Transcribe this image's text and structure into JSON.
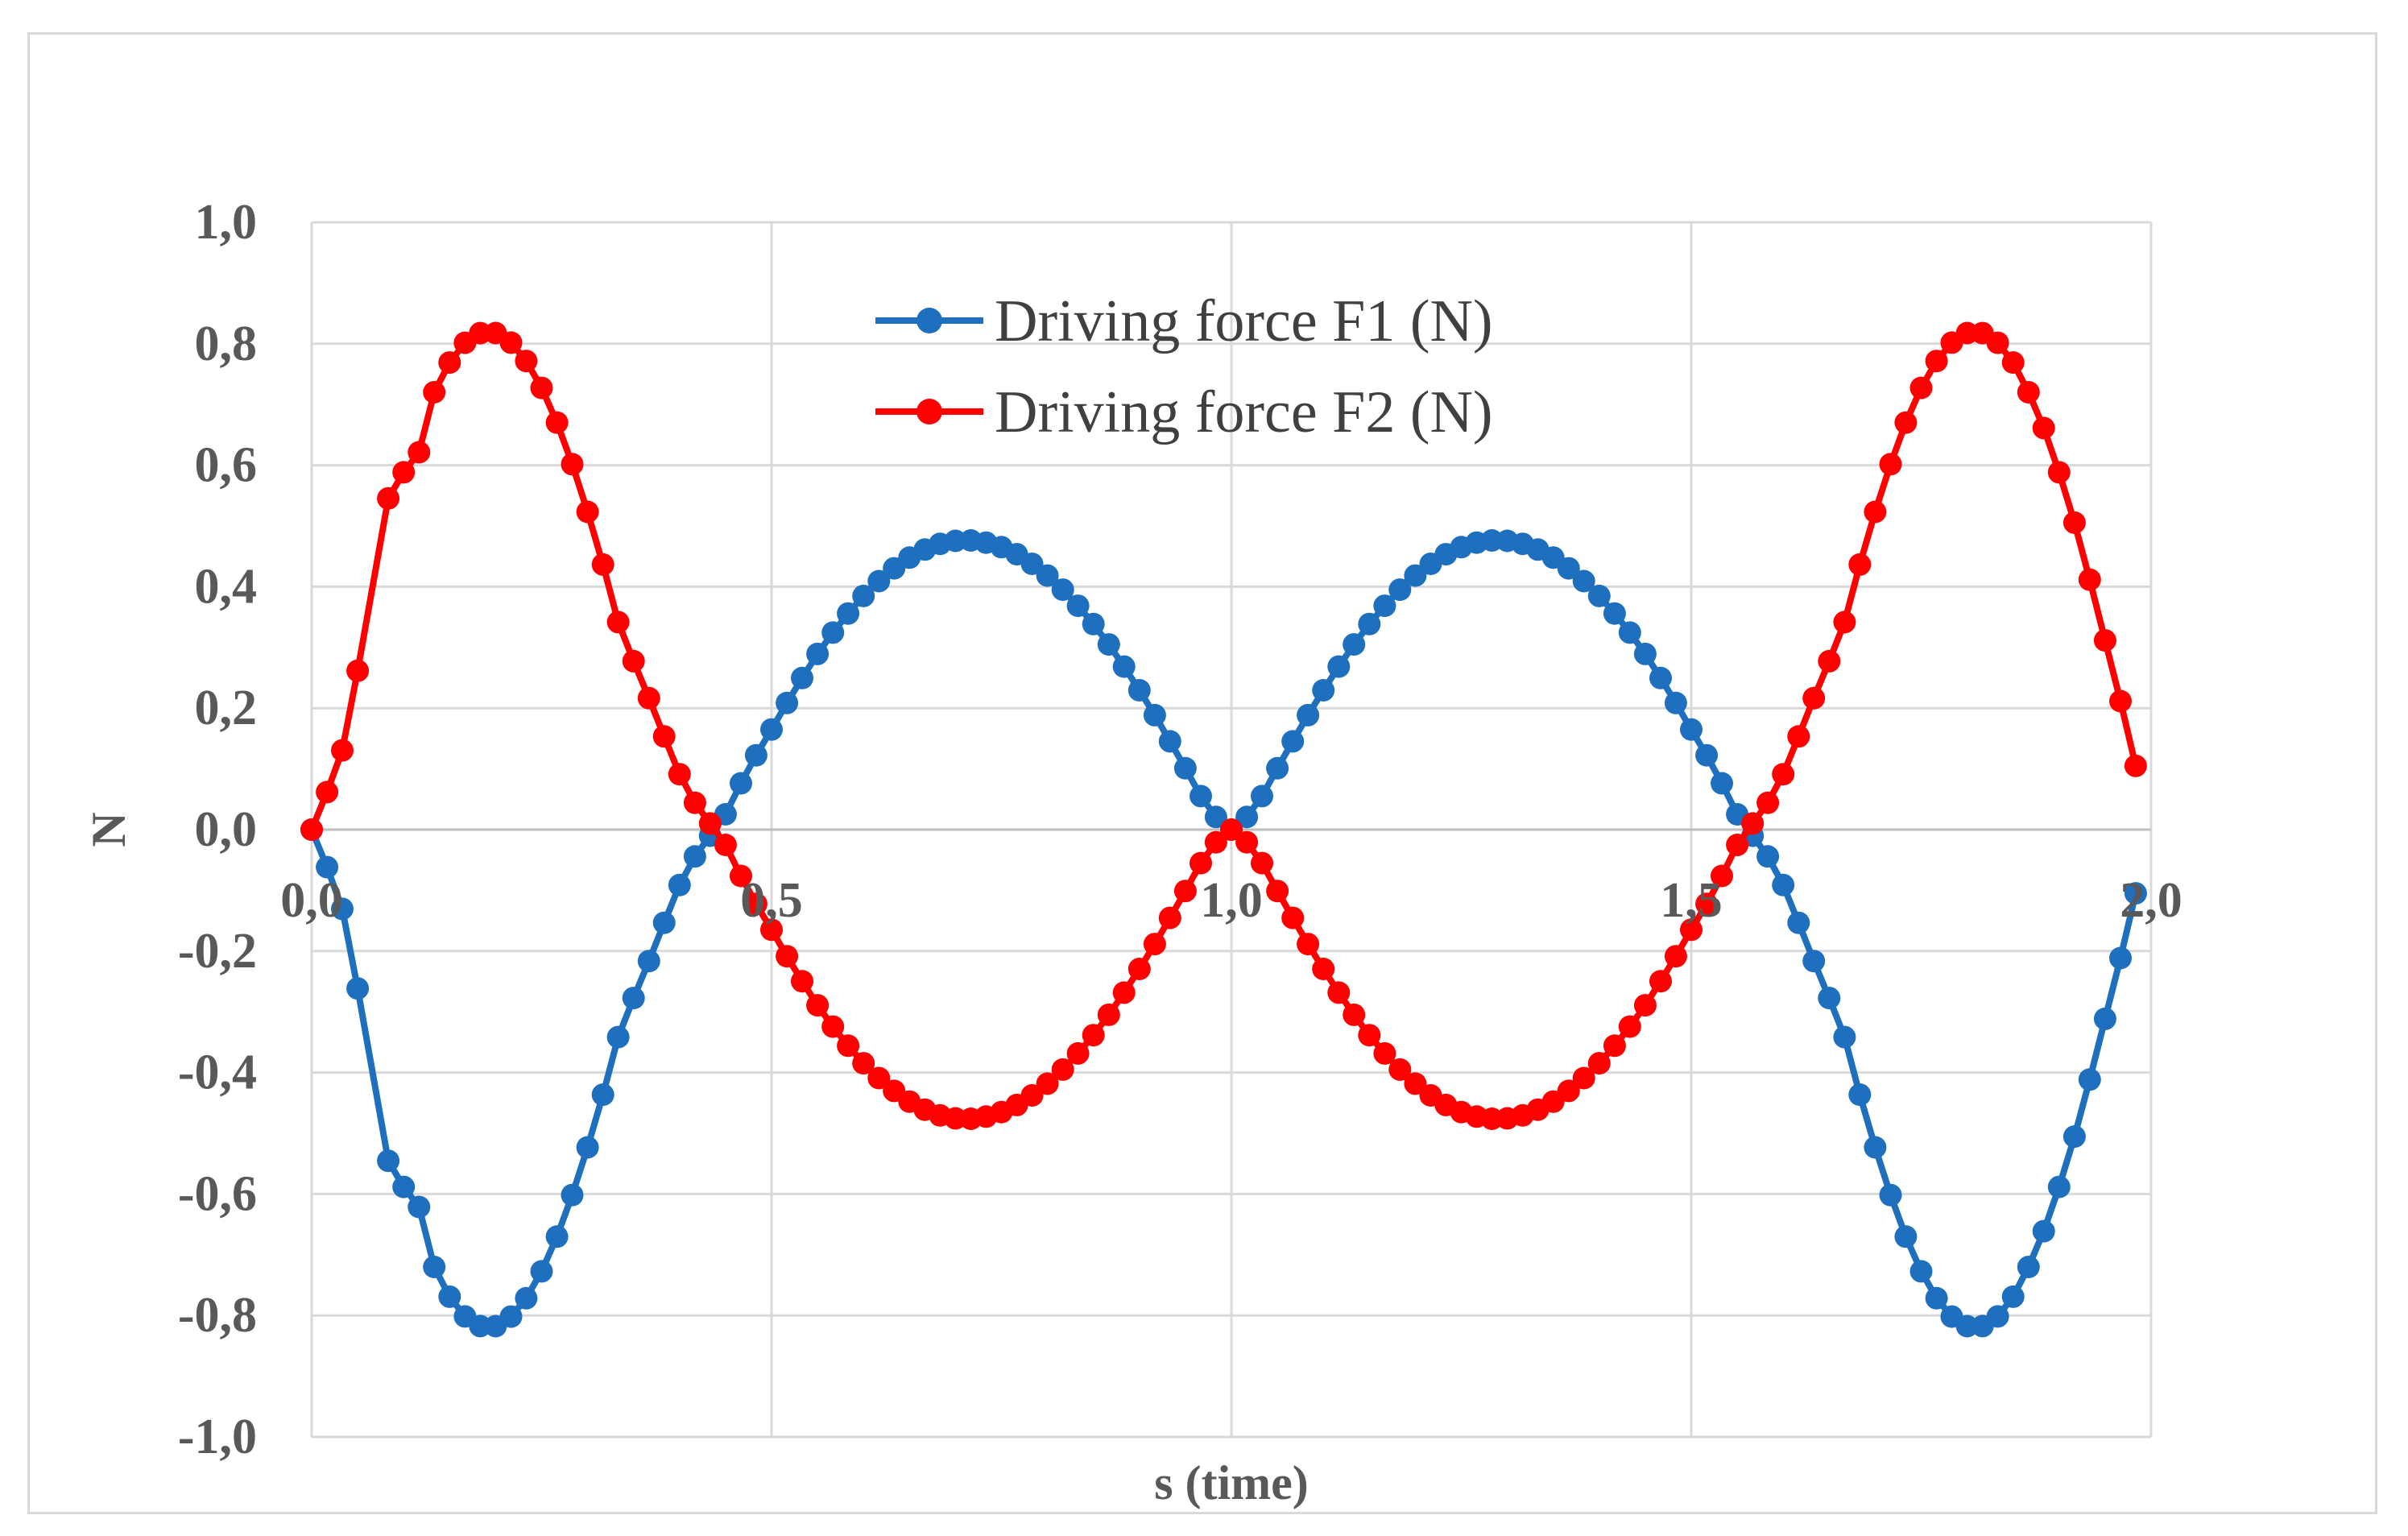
{
  "chart_data": {
    "type": "line",
    "title": "",
    "xlabel": "s (time)",
    "ylabel": "N",
    "xlim": [
      0.0,
      2.0
    ],
    "ylim": [
      -1.0,
      1.0
    ],
    "x_ticks": [
      "0,0",
      "0,5",
      "1,0",
      "1,5",
      "2,0"
    ],
    "y_ticks": [
      "1,0",
      "0,8",
      "0,6",
      "0,4",
      "0,2",
      "0,0",
      "-0,2",
      "-0,4",
      "-0,6",
      "-0,8",
      "-1,0"
    ],
    "grid": true,
    "legend_position": "top-center",
    "series": [
      {
        "name": "Driving force F1 (N)",
        "color": "#1f6fbf",
        "points": [
          [
            0.0,
            0.0
          ],
          [
            0.0167,
            -0.0618
          ],
          [
            0.0333,
            -0.1305
          ],
          [
            0.05,
            -0.2616
          ],
          [
            0.0833,
            -0.5454
          ],
          [
            0.1,
            -0.5883
          ],
          [
            0.1167,
            -0.6213
          ],
          [
            0.1333,
            -0.7202
          ],
          [
            0.15,
            -0.7691
          ],
          [
            0.1667,
            -0.8016
          ],
          [
            0.1833,
            -0.8175
          ],
          [
            0.2,
            -0.8176
          ],
          [
            0.2167,
            -0.8018
          ],
          [
            0.2333,
            -0.7716
          ],
          [
            0.25,
            -0.7273
          ],
          [
            0.2667,
            -0.6702
          ],
          [
            0.2833,
            -0.6017
          ],
          [
            0.3,
            -0.5232
          ],
          [
            0.3167,
            -0.4365
          ],
          [
            0.3333,
            -0.3416
          ],
          [
            0.35,
            -0.2773
          ],
          [
            0.3667,
            -0.2164
          ],
          [
            0.3833,
            -0.1535
          ],
          [
            0.4,
            -0.0912
          ],
          [
            0.4167,
            -0.0442
          ],
          [
            0.4333,
            -0.0101
          ],
          [
            0.45,
            0.0252
          ],
          [
            0.4667,
            0.0762
          ],
          [
            0.4833,
            0.1224
          ],
          [
            0.5,
            0.1648
          ],
          [
            0.5167,
            0.2085
          ],
          [
            0.5333,
            0.2496
          ],
          [
            0.55,
            0.2893
          ],
          [
            0.5667,
            0.3244
          ],
          [
            0.5833,
            0.3559
          ],
          [
            0.6,
            0.3847
          ],
          [
            0.6167,
            0.4092
          ],
          [
            0.6333,
            0.4303
          ],
          [
            0.65,
            0.4479
          ],
          [
            0.6667,
            0.4612
          ],
          [
            0.6833,
            0.4706
          ],
          [
            0.7,
            0.4754
          ],
          [
            0.7167,
            0.4761
          ],
          [
            0.7333,
            0.4726
          ],
          [
            0.75,
            0.4651
          ],
          [
            0.7667,
            0.4534
          ],
          [
            0.7833,
            0.4377
          ],
          [
            0.8,
            0.4183
          ],
          [
            0.8167,
            0.3951
          ],
          [
            0.8333,
            0.3686
          ],
          [
            0.85,
            0.3384
          ],
          [
            0.8667,
            0.3049
          ],
          [
            0.8833,
            0.2685
          ],
          [
            0.9,
            0.2294
          ],
          [
            0.9167,
            0.1884
          ],
          [
            0.9333,
            0.1454
          ],
          [
            0.95,
            0.1011
          ],
          [
            0.9667,
            0.0552
          ],
          [
            0.9833,
            0.0208
          ],
          [
            1.0,
            0.0
          ],
          [
            1.0167,
            0.0208
          ],
          [
            1.0333,
            0.0552
          ],
          [
            1.05,
            0.1011
          ],
          [
            1.0667,
            0.1454
          ],
          [
            1.0833,
            0.1884
          ],
          [
            1.1,
            0.2294
          ],
          [
            1.1167,
            0.2685
          ],
          [
            1.1333,
            0.3049
          ],
          [
            1.15,
            0.3384
          ],
          [
            1.1667,
            0.3686
          ],
          [
            1.1833,
            0.3951
          ],
          [
            1.2,
            0.4183
          ],
          [
            1.2167,
            0.4377
          ],
          [
            1.2333,
            0.4534
          ],
          [
            1.25,
            0.4651
          ],
          [
            1.2667,
            0.4726
          ],
          [
            1.2833,
            0.4761
          ],
          [
            1.3,
            0.4754
          ],
          [
            1.3167,
            0.4706
          ],
          [
            1.3333,
            0.4612
          ],
          [
            1.35,
            0.4479
          ],
          [
            1.3667,
            0.4303
          ],
          [
            1.3833,
            0.4092
          ],
          [
            1.4,
            0.3847
          ],
          [
            1.4167,
            0.3559
          ],
          [
            1.4333,
            0.3244
          ],
          [
            1.45,
            0.2893
          ],
          [
            1.4667,
            0.2496
          ],
          [
            1.4833,
            0.2085
          ],
          [
            1.5,
            0.1648
          ],
          [
            1.5167,
            0.1224
          ],
          [
            1.5333,
            0.0762
          ],
          [
            1.55,
            0.0252
          ],
          [
            1.5667,
            -0.0101
          ],
          [
            1.5833,
            -0.0442
          ],
          [
            1.6,
            -0.0912
          ],
          [
            1.6167,
            -0.1535
          ],
          [
            1.6333,
            -0.2164
          ],
          [
            1.65,
            -0.2773
          ],
          [
            1.6667,
            -0.3416
          ],
          [
            1.6833,
            -0.4365
          ],
          [
            1.7,
            -0.5232
          ],
          [
            1.7167,
            -0.6017
          ],
          [
            1.7333,
            -0.6702
          ],
          [
            1.75,
            -0.7273
          ],
          [
            1.7667,
            -0.7716
          ],
          [
            1.7833,
            -0.8018
          ],
          [
            1.8,
            -0.8176
          ],
          [
            1.8167,
            -0.8175
          ],
          [
            1.8333,
            -0.8016
          ],
          [
            1.85,
            -0.7691
          ],
          [
            1.8667,
            -0.7202
          ],
          [
            1.8833,
            -0.6613
          ],
          [
            1.9,
            -0.5883
          ],
          [
            1.9167,
            -0.5054
          ],
          [
            1.9333,
            -0.4116
          ],
          [
            1.95,
            -0.3116
          ],
          [
            1.9667,
            -0.2116
          ],
          [
            1.9833,
            -0.1049
          ]
        ]
      },
      {
        "name": "Driving force F2 (N)",
        "color": "#ff0000",
        "points": [
          [
            0.0,
            0.0
          ],
          [
            0.0167,
            0.0618
          ],
          [
            0.0333,
            0.1305
          ],
          [
            0.05,
            0.2616
          ],
          [
            0.0833,
            0.5454
          ],
          [
            0.1,
            0.5883
          ],
          [
            0.1167,
            0.6213
          ],
          [
            0.1333,
            0.7202
          ],
          [
            0.15,
            0.7691
          ],
          [
            0.1667,
            0.8016
          ],
          [
            0.1833,
            0.8175
          ],
          [
            0.2,
            0.8176
          ],
          [
            0.2167,
            0.8018
          ],
          [
            0.2333,
            0.7716
          ],
          [
            0.25,
            0.7273
          ],
          [
            0.2667,
            0.6702
          ],
          [
            0.2833,
            0.6017
          ],
          [
            0.3,
            0.5232
          ],
          [
            0.3167,
            0.4365
          ],
          [
            0.3333,
            0.3416
          ],
          [
            0.35,
            0.2773
          ],
          [
            0.3667,
            0.2164
          ],
          [
            0.3833,
            0.1535
          ],
          [
            0.4,
            0.0912
          ],
          [
            0.4167,
            0.0442
          ],
          [
            0.4333,
            0.0101
          ],
          [
            0.45,
            -0.0252
          ],
          [
            0.4667,
            -0.0762
          ],
          [
            0.4833,
            -0.1224
          ],
          [
            0.5,
            -0.1648
          ],
          [
            0.5167,
            -0.2085
          ],
          [
            0.5333,
            -0.2496
          ],
          [
            0.55,
            -0.2893
          ],
          [
            0.5667,
            -0.3244
          ],
          [
            0.5833,
            -0.3559
          ],
          [
            0.6,
            -0.3847
          ],
          [
            0.6167,
            -0.4092
          ],
          [
            0.6333,
            -0.4303
          ],
          [
            0.65,
            -0.4479
          ],
          [
            0.6667,
            -0.4612
          ],
          [
            0.6833,
            -0.4706
          ],
          [
            0.7,
            -0.4754
          ],
          [
            0.7167,
            -0.4761
          ],
          [
            0.7333,
            -0.4726
          ],
          [
            0.75,
            -0.4651
          ],
          [
            0.7667,
            -0.4534
          ],
          [
            0.7833,
            -0.4377
          ],
          [
            0.8,
            -0.4183
          ],
          [
            0.8167,
            -0.3951
          ],
          [
            0.8333,
            -0.3686
          ],
          [
            0.85,
            -0.3384
          ],
          [
            0.8667,
            -0.3049
          ],
          [
            0.8833,
            -0.2685
          ],
          [
            0.9,
            -0.2294
          ],
          [
            0.9167,
            -0.1884
          ],
          [
            0.9333,
            -0.1454
          ],
          [
            0.95,
            -0.1011
          ],
          [
            0.9667,
            -0.0552
          ],
          [
            0.9833,
            -0.0208
          ],
          [
            1.0,
            0.0
          ],
          [
            1.0167,
            -0.0208
          ],
          [
            1.0333,
            -0.0552
          ],
          [
            1.05,
            -0.1011
          ],
          [
            1.0667,
            -0.1454
          ],
          [
            1.0833,
            -0.1884
          ],
          [
            1.1,
            -0.2294
          ],
          [
            1.1167,
            -0.2685
          ],
          [
            1.1333,
            -0.3049
          ],
          [
            1.15,
            -0.3384
          ],
          [
            1.1667,
            -0.3686
          ],
          [
            1.1833,
            -0.3951
          ],
          [
            1.2,
            -0.4183
          ],
          [
            1.2167,
            -0.4377
          ],
          [
            1.2333,
            -0.4534
          ],
          [
            1.25,
            -0.4651
          ],
          [
            1.2667,
            -0.4726
          ],
          [
            1.2833,
            -0.4761
          ],
          [
            1.3,
            -0.4754
          ],
          [
            1.3167,
            -0.4706
          ],
          [
            1.3333,
            -0.4612
          ],
          [
            1.35,
            -0.4479
          ],
          [
            1.3667,
            -0.4303
          ],
          [
            1.3833,
            -0.4092
          ],
          [
            1.4,
            -0.3847
          ],
          [
            1.4167,
            -0.3559
          ],
          [
            1.4333,
            -0.3244
          ],
          [
            1.45,
            -0.2893
          ],
          [
            1.4667,
            -0.2496
          ],
          [
            1.4833,
            -0.2085
          ],
          [
            1.5,
            -0.1648
          ],
          [
            1.5167,
            -0.1224
          ],
          [
            1.5333,
            -0.0762
          ],
          [
            1.55,
            -0.0252
          ],
          [
            1.5667,
            0.0101
          ],
          [
            1.5833,
            0.0442
          ],
          [
            1.6,
            0.0912
          ],
          [
            1.6167,
            0.1535
          ],
          [
            1.6333,
            0.2164
          ],
          [
            1.65,
            0.2773
          ],
          [
            1.6667,
            0.3416
          ],
          [
            1.6833,
            0.4365
          ],
          [
            1.7,
            0.5232
          ],
          [
            1.7167,
            0.6017
          ],
          [
            1.7333,
            0.6702
          ],
          [
            1.75,
            0.7273
          ],
          [
            1.7667,
            0.7716
          ],
          [
            1.7833,
            0.8018
          ],
          [
            1.8,
            0.8176
          ],
          [
            1.8167,
            0.8175
          ],
          [
            1.8333,
            0.8016
          ],
          [
            1.85,
            0.7691
          ],
          [
            1.8667,
            0.7202
          ],
          [
            1.8833,
            0.6613
          ],
          [
            1.9,
            0.5883
          ],
          [
            1.9167,
            0.5054
          ],
          [
            1.9333,
            0.4116
          ],
          [
            1.95,
            0.3116
          ],
          [
            1.9667,
            0.2116
          ],
          [
            1.9833,
            0.1049
          ]
        ]
      }
    ]
  }
}
